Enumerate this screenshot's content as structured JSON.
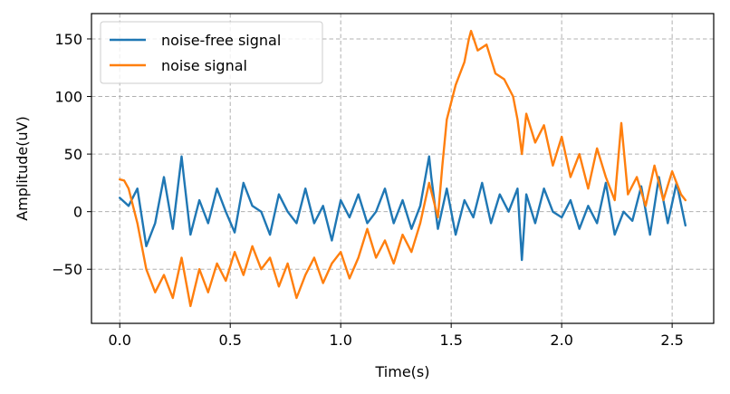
{
  "chart_data": {
    "type": "line",
    "title": "",
    "xlabel": "Time(s)",
    "ylabel": "Amplitude(uV)",
    "xlim": [
      -0.128,
      2.688
    ],
    "ylim": [
      -97,
      172
    ],
    "xticks": [
      0.0,
      0.5,
      1.0,
      1.5,
      2.0,
      2.5
    ],
    "xtick_labels": [
      "0.0",
      "0.5",
      "1.0",
      "1.5",
      "2.0",
      "2.5"
    ],
    "yticks": [
      -50,
      0,
      50,
      100,
      150
    ],
    "ytick_labels": [
      "−50",
      "0",
      "50",
      "100",
      "150"
    ],
    "grid": true,
    "legend_position": "top-left",
    "series": [
      {
        "name": "noise-free signal",
        "color": "#1f77b4",
        "x": [
          0.0,
          0.04,
          0.08,
          0.12,
          0.16,
          0.2,
          0.24,
          0.28,
          0.29,
          0.32,
          0.36,
          0.4,
          0.44,
          0.48,
          0.52,
          0.56,
          0.6,
          0.64,
          0.68,
          0.72,
          0.76,
          0.8,
          0.84,
          0.88,
          0.92,
          0.96,
          1.0,
          1.04,
          1.08,
          1.12,
          1.16,
          1.2,
          1.24,
          1.28,
          1.32,
          1.36,
          1.4,
          1.41,
          1.44,
          1.48,
          1.52,
          1.56,
          1.6,
          1.64,
          1.68,
          1.72,
          1.76,
          1.8,
          1.82,
          1.84,
          1.88,
          1.92,
          1.96,
          2.0,
          2.04,
          2.08,
          2.12,
          2.16,
          2.2,
          2.24,
          2.28,
          2.32,
          2.36,
          2.4,
          2.44,
          2.48,
          2.52,
          2.56
        ],
        "y": [
          12,
          5,
          20,
          -30,
          -10,
          30,
          -15,
          48,
          30,
          -20,
          10,
          -10,
          20,
          0,
          -18,
          25,
          5,
          0,
          -20,
          15,
          0,
          -10,
          20,
          -10,
          5,
          -25,
          10,
          -5,
          15,
          -10,
          0,
          20,
          -10,
          10,
          -15,
          5,
          48,
          30,
          -15,
          20,
          -20,
          10,
          -5,
          25,
          -10,
          15,
          0,
          20,
          -42,
          15,
          -10,
          20,
          0,
          -5,
          10,
          -15,
          5,
          -10,
          25,
          -20,
          0,
          -8,
          22,
          -20,
          30,
          -10,
          25,
          -12
        ]
      },
      {
        "name": "noise signal",
        "color": "#ff7f0e",
        "x": [
          0.0,
          0.02,
          0.04,
          0.08,
          0.12,
          0.16,
          0.2,
          0.24,
          0.28,
          0.32,
          0.36,
          0.4,
          0.44,
          0.48,
          0.52,
          0.56,
          0.6,
          0.64,
          0.68,
          0.72,
          0.76,
          0.8,
          0.84,
          0.88,
          0.92,
          0.96,
          1.0,
          1.04,
          1.08,
          1.12,
          1.16,
          1.2,
          1.24,
          1.28,
          1.32,
          1.36,
          1.4,
          1.44,
          1.46,
          1.48,
          1.52,
          1.56,
          1.58,
          1.59,
          1.62,
          1.66,
          1.7,
          1.74,
          1.78,
          1.8,
          1.82,
          1.84,
          1.88,
          1.92,
          1.96,
          2.0,
          2.04,
          2.08,
          2.12,
          2.16,
          2.2,
          2.24,
          2.27,
          2.3,
          2.34,
          2.38,
          2.42,
          2.46,
          2.5,
          2.54,
          2.56
        ],
        "y": [
          28,
          27,
          20,
          -10,
          -50,
          -70,
          -55,
          -75,
          -40,
          -82,
          -50,
          -70,
          -45,
          -60,
          -35,
          -55,
          -30,
          -50,
          -40,
          -65,
          -45,
          -75,
          -55,
          -40,
          -62,
          -45,
          -35,
          -58,
          -40,
          -15,
          -40,
          -25,
          -45,
          -20,
          -35,
          -10,
          25,
          -5,
          40,
          80,
          110,
          130,
          150,
          157,
          140,
          145,
          120,
          115,
          100,
          80,
          50,
          85,
          60,
          75,
          40,
          65,
          30,
          50,
          20,
          55,
          30,
          10,
          77,
          15,
          30,
          5,
          40,
          10,
          35,
          15,
          10
        ]
      }
    ]
  }
}
